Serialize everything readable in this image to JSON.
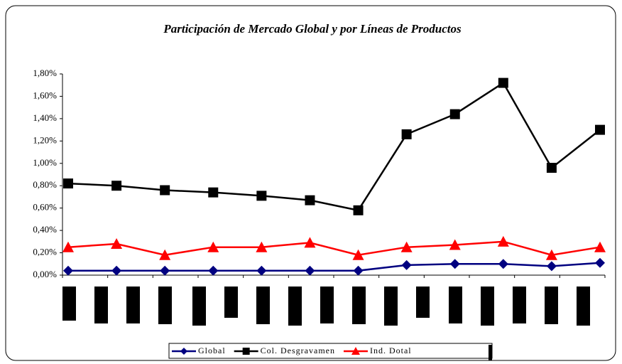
{
  "chart_data": {
    "type": "line",
    "title": "Participación de Mercado Global y por Líneas de Productos",
    "categories": [
      null,
      null,
      null,
      null,
      null,
      null,
      null,
      null,
      null,
      null,
      null,
      null
    ],
    "series": [
      {
        "name": "Global",
        "color": "#000080",
        "marker": "diamond",
        "values": [
          0.04,
          0.04,
          0.04,
          0.04,
          0.04,
          0.04,
          0.04,
          0.09,
          0.1,
          0.1,
          0.08,
          0.11
        ]
      },
      {
        "name": "Col. Desgravamen",
        "color": "#000000",
        "marker": "square",
        "values": [
          0.82,
          0.8,
          0.76,
          0.74,
          0.71,
          0.67,
          0.58,
          1.26,
          1.44,
          1.72,
          0.96,
          1.3
        ]
      },
      {
        "name": "Ind. Dotal",
        "color": "#ff0000",
        "marker": "triangle",
        "values": [
          0.25,
          0.28,
          0.18,
          0.25,
          0.25,
          0.29,
          0.18,
          0.25,
          0.27,
          0.3,
          0.18,
          0.25
        ]
      }
    ],
    "ylim": [
      0,
      1.8
    ],
    "yticks": [
      {
        "value": 0,
        "label": "0,00%"
      },
      {
        "value": 0.2,
        "label": "0,20%"
      },
      {
        "value": 0.4,
        "label": "0,40%"
      },
      {
        "value": 0.6,
        "label": "0,60%"
      },
      {
        "value": 0.8,
        "label": "0,80%"
      },
      {
        "value": 1.0,
        "label": "1,00%"
      },
      {
        "value": 1.2,
        "label": "1,20%"
      },
      {
        "value": 1.4,
        "label": "1,40%"
      },
      {
        "value": 1.6,
        "label": "1,60%"
      },
      {
        "value": 1.8,
        "label": "1,80%"
      }
    ],
    "legend": "bottom"
  }
}
